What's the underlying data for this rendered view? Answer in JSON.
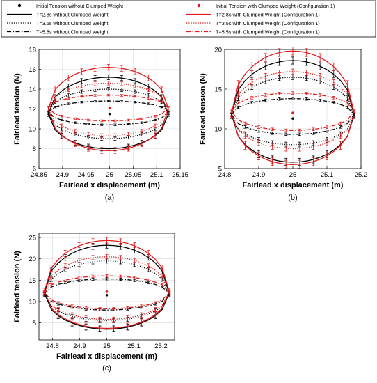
{
  "legend": {
    "entries": [
      {
        "label": "Initial Tension without Clumped Weight",
        "color": "#000000",
        "style": "marker"
      },
      {
        "label": "Initial Tension with Clumped Weight (Configuration 1)",
        "color": "#e41a1c",
        "style": "marker"
      },
      {
        "label": "T=2.8s without Clumped Weight",
        "color": "#000000",
        "style": "solid"
      },
      {
        "label": "T=2.8s with Clumped Weight (Configuration 1)",
        "color": "#e41a1c",
        "style": "solid"
      },
      {
        "label": "T=3.5s without Clumped Weight",
        "color": "#000000",
        "style": "dotted"
      },
      {
        "label": "T=3.5s with Clumped Weight (Configuration 1)",
        "color": "#e41a1c",
        "style": "dotted"
      },
      {
        "label": "T=5.5s without Clumped Weight",
        "color": "#000000",
        "style": "dashdot"
      },
      {
        "label": "T=5.5s with Clumped Weight (Configuration 1)",
        "color": "#e41a1c",
        "style": "dashdot"
      }
    ]
  },
  "colors": {
    "without": "#000000",
    "with": "#e41a1c",
    "grid": "#d9d9d9"
  },
  "chart_data": [
    {
      "type": "line",
      "panel_label": "(a)",
      "xlabel": "Fairlead x displacement (m)",
      "ylabel": "Fairlead tension (N)",
      "xlim": [
        24.85,
        25.15
      ],
      "ylim": [
        6,
        18
      ],
      "xticks": [
        "24.85",
        "24.9",
        "24.95",
        "25",
        "25.05",
        "25.1",
        "25.15"
      ],
      "yticks": [
        "6",
        "8",
        "10",
        "12",
        "14",
        "16",
        "18"
      ],
      "grid": true,
      "x_range": [
        24.87,
        25.125
      ],
      "initial_points": [
        {
          "x": 25.0,
          "y": 11.5,
          "series": "without"
        },
        {
          "x": 25.0,
          "y": 12.1,
          "series": "with"
        }
      ],
      "series": [
        {
          "name": "T=2.8s without Clumped Weight",
          "color": "without",
          "style": "solid",
          "center": 11.5,
          "upper": 15.2,
          "lower": 8.0
        },
        {
          "name": "T=2.8s with Clumped Weight (Configuration 1)",
          "color": "with",
          "style": "solid",
          "center": 12.0,
          "upper": 16.2,
          "lower": 7.8
        },
        {
          "name": "T=3.5s without Clumped Weight",
          "color": "without",
          "style": "dotted",
          "center": 11.6,
          "upper": 14.0,
          "lower": 9.0
        },
        {
          "name": "T=3.5s with Clumped Weight (Configuration 1)",
          "color": "with",
          "style": "dotted",
          "center": 12.0,
          "upper": 14.6,
          "lower": 9.3
        },
        {
          "name": "T=5.5s without Clumped Weight",
          "color": "without",
          "style": "dashdot",
          "center": 11.7,
          "upper": 12.8,
          "lower": 10.4
        },
        {
          "name": "T=5.5s with Clumped Weight (Configuration 1)",
          "color": "with",
          "style": "dashdot",
          "center": 12.1,
          "upper": 13.4,
          "lower": 10.8
        }
      ]
    },
    {
      "type": "line",
      "panel_label": "(b)",
      "xlabel": "Fairlead x displacement (m)",
      "ylabel": "Fairlead tension (N)",
      "xlim": [
        24.8,
        25.2
      ],
      "ylim": [
        5,
        20
      ],
      "xticks": [
        "24.8",
        "24.9",
        "25",
        "25.1",
        "25.2"
      ],
      "yticks": [
        "5",
        "10",
        "15",
        "20"
      ],
      "grid": true,
      "x_range": [
        24.82,
        25.18
      ],
      "initial_points": [
        {
          "x": 25.0,
          "y": 11.3,
          "series": "without"
        },
        {
          "x": 25.0,
          "y": 12.0,
          "series": "with"
        }
      ],
      "series": [
        {
          "name": "T=2.8s without Clumped Weight",
          "color": "without",
          "style": "solid",
          "center": 11.8,
          "upper": 18.6,
          "lower": 5.8
        },
        {
          "name": "T=2.8s with Clumped Weight (Configuration 1)",
          "color": "with",
          "style": "solid",
          "center": 12.0,
          "upper": 19.8,
          "lower": 5.5
        },
        {
          "name": "T=3.5s without Clumped Weight",
          "color": "without",
          "style": "dotted",
          "center": 11.6,
          "upper": 16.5,
          "lower": 8.0
        },
        {
          "name": "T=3.5s with Clumped Weight (Configuration 1)",
          "color": "with",
          "style": "dotted",
          "center": 11.9,
          "upper": 17.2,
          "lower": 7.5
        },
        {
          "name": "T=5.5s without Clumped Weight",
          "color": "without",
          "style": "dashdot",
          "center": 11.8,
          "upper": 13.8,
          "lower": 9.3
        },
        {
          "name": "T=5.5s with Clumped Weight (Configuration 1)",
          "color": "with",
          "style": "dashdot",
          "center": 12.2,
          "upper": 14.5,
          "lower": 9.8
        }
      ]
    },
    {
      "type": "line",
      "panel_label": "(c)",
      "xlabel": "Fairlead x displacement (m)",
      "ylabel": "Fairlead tension (N)",
      "xlim": [
        24.75,
        25.25
      ],
      "ylim": [
        1,
        26
      ],
      "xticks": [
        "24.8",
        "24.9",
        "25",
        "25.1",
        "25.2"
      ],
      "yticks": [
        "5",
        "10",
        "15",
        "20",
        "25"
      ],
      "grid": true,
      "x_range": [
        24.77,
        25.23
      ],
      "initial_points": [
        {
          "x": 25.0,
          "y": 11.5,
          "series": "without"
        },
        {
          "x": 25.0,
          "y": 12.3,
          "series": "with"
        }
      ],
      "series": [
        {
          "name": "T=2.8s without Clumped Weight",
          "color": "without",
          "style": "solid",
          "center": 12.0,
          "upper": 23.2,
          "lower": 3.5
        },
        {
          "name": "T=2.8s with Clumped Weight (Configuration 1)",
          "color": "with",
          "style": "solid",
          "center": 12.4,
          "upper": 24.3,
          "lower": 3.7
        },
        {
          "name": "T=3.5s without Clumped Weight",
          "color": "without",
          "style": "dotted",
          "center": 11.6,
          "upper": 19.5,
          "lower": 5.5
        },
        {
          "name": "T=3.5s with Clumped Weight (Configuration 1)",
          "color": "with",
          "style": "dotted",
          "center": 12.0,
          "upper": 20.5,
          "lower": 5.8
        },
        {
          "name": "T=5.5s without Clumped Weight",
          "color": "without",
          "style": "dashdot",
          "center": 11.8,
          "upper": 15.3,
          "lower": 8.0
        },
        {
          "name": "T=5.5s with Clumped Weight (Configuration 1)",
          "color": "with",
          "style": "dashdot",
          "center": 12.1,
          "upper": 16.0,
          "lower": 8.3
        }
      ]
    }
  ]
}
